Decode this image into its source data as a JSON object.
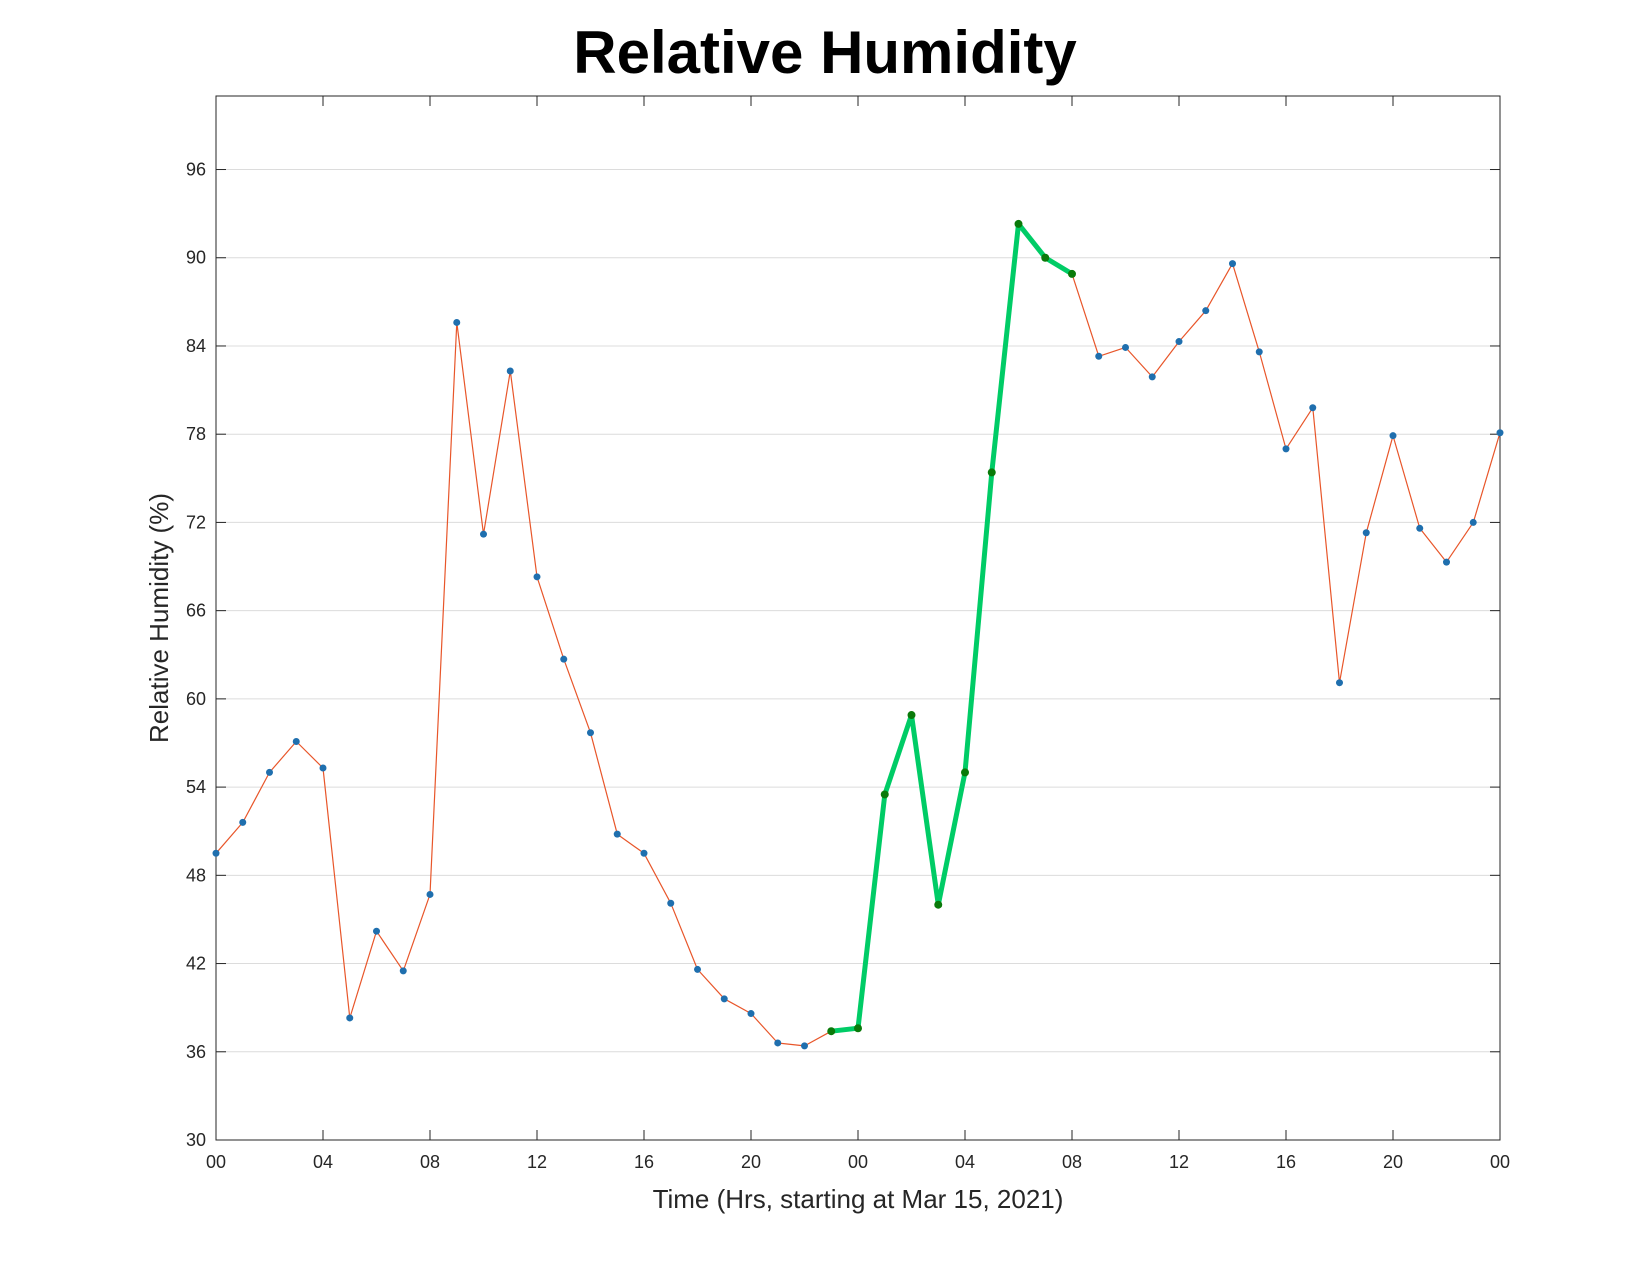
{
  "chart_data": {
    "type": "line",
    "title": "Relative Humidity",
    "xlabel": "Time (Hrs, starting at Mar 15, 2021)",
    "ylabel": "Relative Humidity (%)",
    "ylim": [
      30,
      101
    ],
    "y_ticks": [
      30,
      36,
      42,
      48,
      54,
      60,
      66,
      72,
      78,
      84,
      90,
      96
    ],
    "x_tick_hours": [
      0,
      4,
      8,
      12,
      16,
      20,
      24,
      28,
      32,
      36,
      40,
      44,
      48
    ],
    "x_tick_labels": [
      "00",
      "04",
      "08",
      "12",
      "16",
      "20",
      "00",
      "04",
      "08",
      "12",
      "16",
      "20",
      "00"
    ],
    "xlim": [
      0,
      48
    ],
    "grid": "horizontal",
    "series": [
      {
        "color": "#e8562a",
        "marker_color": "#1f6fae",
        "x": [
          0,
          1,
          2,
          3,
          4,
          5,
          6,
          7,
          8,
          9,
          10,
          11,
          12,
          13,
          14,
          15,
          16,
          17,
          18,
          19,
          20,
          21,
          22,
          23,
          24,
          25,
          26,
          27,
          28,
          29,
          30,
          31,
          32,
          33,
          34,
          35,
          36,
          37,
          38,
          39,
          40,
          41,
          42,
          43,
          44,
          45,
          46,
          47,
          48
        ],
        "values": [
          49.5,
          51.6,
          55,
          57.1,
          55.3,
          38.3,
          44.2,
          41.5,
          46.7,
          85.6,
          71.2,
          82.3,
          68.3,
          62.7,
          57.7,
          50.8,
          49.5,
          46.1,
          41.6,
          39.6,
          38.6,
          36.6,
          36.4,
          37.4,
          37.6,
          53.5,
          58.9,
          46,
          55,
          75.4,
          92.3,
          90,
          88.9,
          83.3,
          83.9,
          81.9,
          84.3,
          86.4,
          89.6,
          83.6,
          77,
          79.8,
          61.1,
          71.3,
          77.9,
          71.6,
          69.3,
          72,
          78.1
        ]
      },
      {
        "color": "#00cc66",
        "marker_color": "#0a7a0a",
        "x": [
          23,
          24,
          25,
          26,
          27,
          28,
          29,
          30,
          31,
          32
        ],
        "values": [
          37.4,
          37.6,
          53.5,
          58.9,
          46,
          55,
          75.4,
          92.3,
          90,
          88.9
        ]
      }
    ]
  }
}
